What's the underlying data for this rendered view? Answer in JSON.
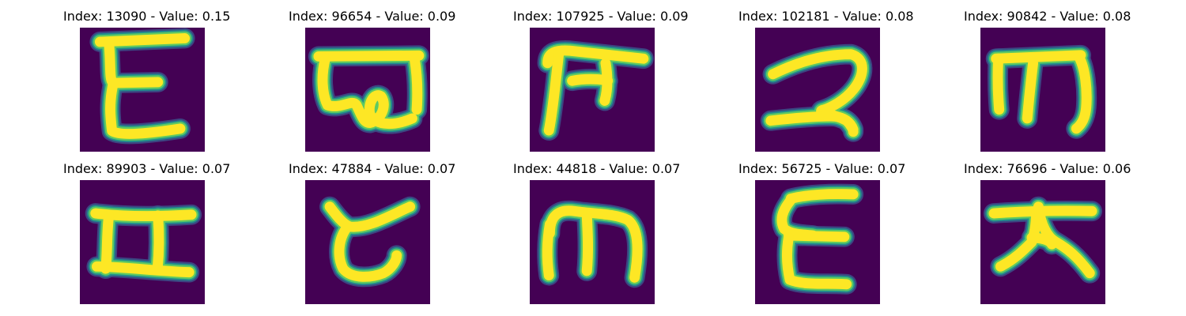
{
  "colors": {
    "background": "#440154",
    "edge_dark": "#3b528b",
    "edge_mid": "#21918c",
    "edge_light": "#5ec962",
    "stroke": "#fde725"
  },
  "panels": [
    {
      "title": "Index: 13090 - Value: 0.15",
      "glyph": "E-shape"
    },
    {
      "title": "Index: 96654 - Value: 0.09",
      "glyph": "swirl-shape"
    },
    {
      "title": "Index: 107925 - Value: 0.09",
      "glyph": "hook-shape"
    },
    {
      "title": "Index: 102181 - Value: 0.08",
      "glyph": "two-shape"
    },
    {
      "title": "Index: 90842 - Value: 0.08",
      "glyph": "m-shape"
    },
    {
      "title": "Index: 89903 - Value: 0.07",
      "glyph": "H-shape"
    },
    {
      "title": "Index: 47884 - Value: 0.07",
      "glyph": "C-shape"
    },
    {
      "title": "Index: 44818 - Value: 0.07",
      "glyph": "m-shape"
    },
    {
      "title": "Index: 56725 - Value: 0.07",
      "glyph": "E-shape"
    },
    {
      "title": "Index: 76696 - Value: 0.06",
      "glyph": "tree-shape"
    }
  ]
}
